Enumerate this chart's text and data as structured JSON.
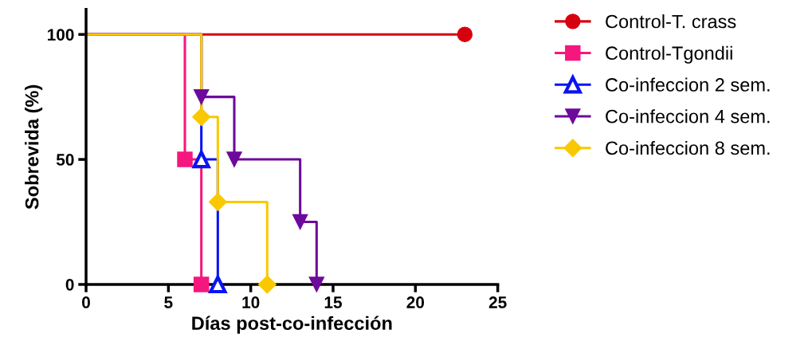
{
  "chart_data": {
    "type": "step",
    "xlabel": "Días post-co-infección",
    "ylabel": "Sobrevida (%)",
    "xlim": [
      0,
      25
    ],
    "xticks": [
      0,
      5,
      10,
      15,
      20,
      25
    ],
    "ylim": [
      0,
      110
    ],
    "yticks": [
      0,
      50,
      100
    ],
    "grid": false,
    "legend": "right",
    "series": [
      {
        "name": "Control-T. crass",
        "color": "#d7000f",
        "marker": "circle",
        "x": [
          0,
          23
        ],
        "values": [
          100,
          100
        ]
      },
      {
        "name": "Control-Tgondii",
        "color": "#f5177d",
        "marker": "square",
        "x": [
          0,
          6,
          7
        ],
        "values": [
          100,
          50,
          0
        ]
      },
      {
        "name": "Co-infeccion 2 sem.",
        "color": "#0a14f0",
        "marker": "triangle",
        "x": [
          0,
          7,
          8
        ],
        "values": [
          100,
          50,
          0
        ]
      },
      {
        "name": "Co-infeccion 4 sem.",
        "color": "#6e0a9b",
        "marker": "triangle_down",
        "x": [
          0,
          7,
          9,
          13,
          14
        ],
        "values": [
          100,
          75,
          50,
          25,
          0
        ]
      },
      {
        "name": "Co-infeccion 8 sem.",
        "color": "#fac800",
        "marker": "diamond",
        "x": [
          0,
          7,
          8,
          11
        ],
        "values": [
          100,
          67,
          33,
          0
        ]
      }
    ]
  }
}
